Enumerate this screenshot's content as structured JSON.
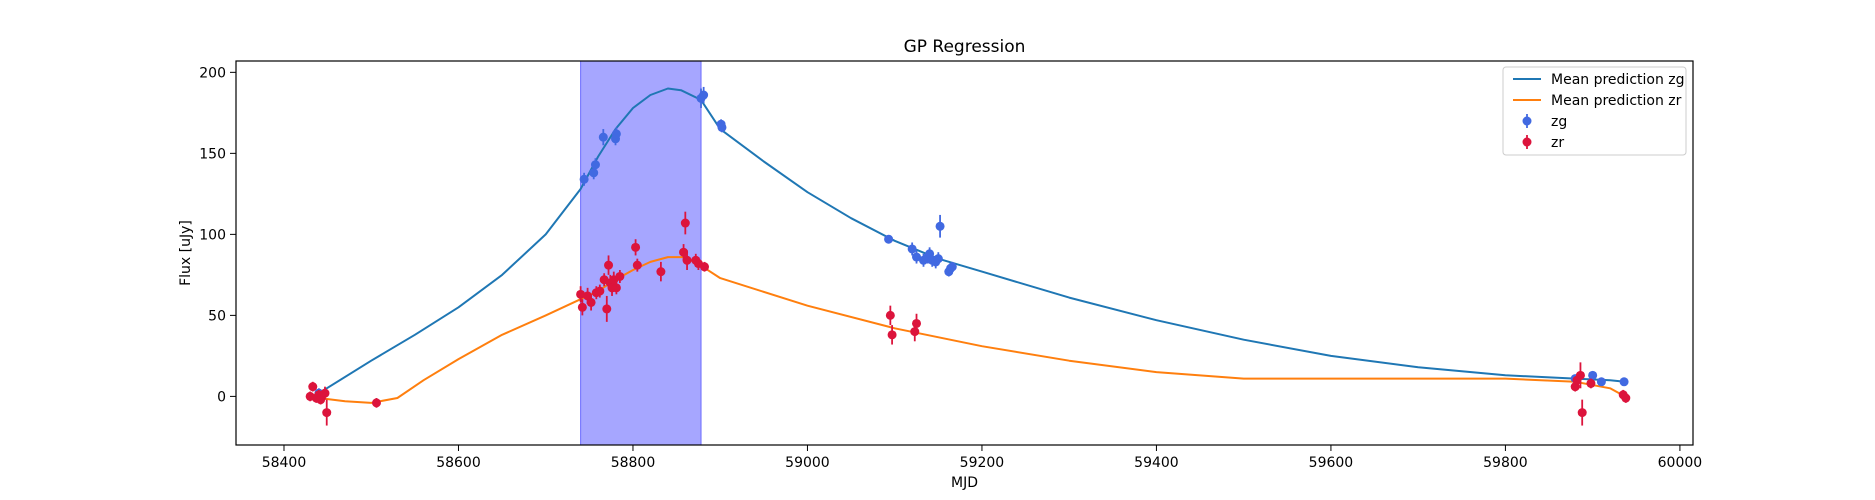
{
  "chart_data": {
    "type": "scatter",
    "title": "GP Regression",
    "xlabel": "MJD",
    "ylabel": "Flux [uJy]",
    "xlim": [
      58345,
      60015
    ],
    "ylim": [
      -30,
      207
    ],
    "xticks": [
      58400,
      58600,
      58800,
      59000,
      59200,
      59400,
      59600,
      59800,
      60000
    ],
    "yticks": [
      0,
      50,
      100,
      150,
      200
    ],
    "highlight_span": {
      "x": [
        58740,
        58878
      ],
      "color": "#a6a6ff"
    },
    "legend_position": "upper right",
    "series": [
      {
        "name": "Mean prediction zg",
        "kind": "line",
        "color": "#1f77b4",
        "x": [
          58440,
          58500,
          58550,
          58600,
          58650,
          58700,
          58740,
          58760,
          58780,
          58800,
          58820,
          58840,
          58855,
          58878,
          58900,
          58950,
          59000,
          59050,
          59100,
          59150,
          59200,
          59300,
          59400,
          59500,
          59600,
          59700,
          59800,
          59880,
          59920,
          59937
        ],
        "y": [
          2,
          22,
          38,
          55,
          75,
          100,
          128,
          148,
          165,
          178,
          186,
          190,
          189,
          183,
          165,
          145,
          126,
          110,
          96,
          85,
          77,
          61,
          47,
          35,
          25,
          18,
          13,
          11,
          10,
          9
        ]
      },
      {
        "name": "Mean prediction zr",
        "kind": "line",
        "color": "#ff7f0e",
        "x": [
          58440,
          58470,
          58500,
          58530,
          58560,
          58600,
          58650,
          58700,
          58740,
          58760,
          58780,
          58800,
          58820,
          58840,
          58860,
          58880,
          58900,
          59000,
          59100,
          59200,
          59300,
          59400,
          59500,
          59600,
          59700,
          59800,
          59880,
          59920,
          59937
        ],
        "y": [
          -1,
          -3,
          -4,
          -1,
          10,
          23,
          38,
          50,
          60,
          65,
          72,
          78,
          83,
          86,
          86,
          80,
          73,
          56,
          42,
          31,
          22,
          15,
          11,
          11,
          11,
          11,
          9,
          5,
          0
        ]
      },
      {
        "name": "zg",
        "kind": "errorbar",
        "color": "#4169e1",
        "x": [
          58440,
          58744,
          58755,
          58757,
          58766,
          58780,
          58781,
          58878,
          58881,
          58901,
          58902,
          59093,
          59120,
          59125,
          59133,
          59138,
          59140,
          59143,
          59147,
          59150,
          59152,
          59162,
          59164,
          59166,
          59880,
          59900,
          59910,
          59936
        ],
        "y": [
          2,
          134,
          138,
          143,
          160,
          159,
          162,
          184,
          186,
          168,
          166,
          97,
          91,
          86,
          84,
          86,
          88,
          84,
          83,
          85,
          105,
          77,
          79,
          80,
          11,
          13,
          9,
          9
        ],
        "yerr": [
          3,
          4,
          4,
          4,
          5,
          4,
          4,
          6,
          5,
          3,
          3,
          2,
          4,
          4,
          4,
          4,
          4,
          4,
          4,
          4,
          7,
          3,
          3,
          3,
          2,
          2,
          2,
          2
        ]
      },
      {
        "name": "zr",
        "kind": "errorbar",
        "color": "#dc143c",
        "x": [
          58430,
          58433,
          58437,
          58440,
          58442,
          58447,
          58449,
          58506,
          58740,
          58742,
          58748,
          58752,
          58758,
          58762,
          58767,
          58770,
          58772,
          58774,
          58776,
          58778,
          58781,
          58785,
          58803,
          58805,
          58832,
          58858,
          58860,
          58862,
          58872,
          58875,
          58882,
          59095,
          59097,
          59123,
          59125,
          59880,
          59882,
          59886,
          59888,
          59898,
          59935,
          59938
        ],
        "y": [
          0,
          6,
          -1,
          1,
          -2,
          2,
          -10,
          -4,
          63,
          55,
          62,
          58,
          64,
          65,
          72,
          54,
          81,
          70,
          67,
          72,
          67,
          74,
          92,
          81,
          77,
          89,
          107,
          84,
          84,
          82,
          80,
          50,
          38,
          40,
          45,
          6,
          10,
          13,
          -10,
          8,
          1,
          -1
        ],
        "yerr": [
          3,
          3,
          3,
          3,
          3,
          4,
          8,
          3,
          5,
          5,
          5,
          5,
          4,
          4,
          4,
          8,
          6,
          5,
          5,
          5,
          4,
          4,
          5,
          4,
          6,
          5,
          7,
          6,
          4,
          4,
          3,
          6,
          6,
          6,
          6,
          3,
          4,
          8,
          8,
          3,
          3,
          3
        ]
      }
    ]
  }
}
